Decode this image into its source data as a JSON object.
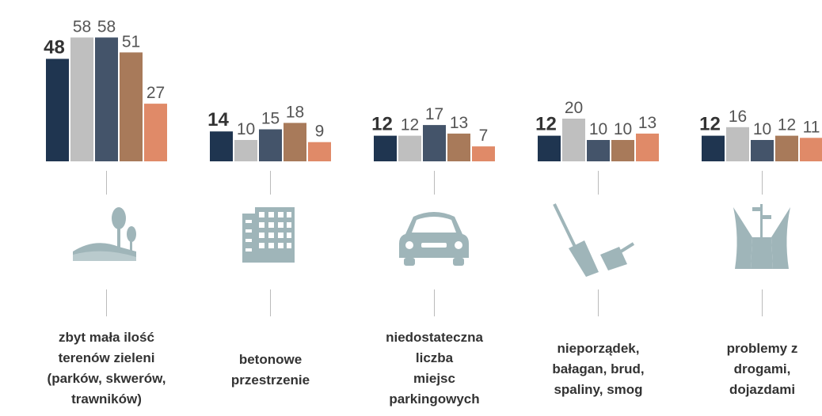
{
  "chart_data": {
    "type": "bar",
    "categories": [
      "zbyt mała ilość\nterenów zieleni\n(parków, skwerów,\ntrawników)",
      "betonowe\nprzestrzenie",
      "niedostateczna\nliczba\nmiejsc\nparkingowych",
      "nieporządek,\nbałagan, brud,\nspaliny, smog",
      "problemy z\ndrogami,\ndojazdami"
    ],
    "series": [
      {
        "color": "#1f3550",
        "values": [
          48,
          14,
          12,
          12,
          12
        ]
      },
      {
        "color": "#bfbfbf",
        "values": [
          58,
          10,
          12,
          20,
          16
        ]
      },
      {
        "color": "#44546a",
        "values": [
          58,
          15,
          17,
          10,
          10
        ]
      },
      {
        "color": "#a87a5a",
        "values": [
          51,
          18,
          13,
          10,
          12
        ]
      },
      {
        "color": "#e08a68",
        "values": [
          27,
          9,
          7,
          13,
          11
        ]
      }
    ]
  }
}
